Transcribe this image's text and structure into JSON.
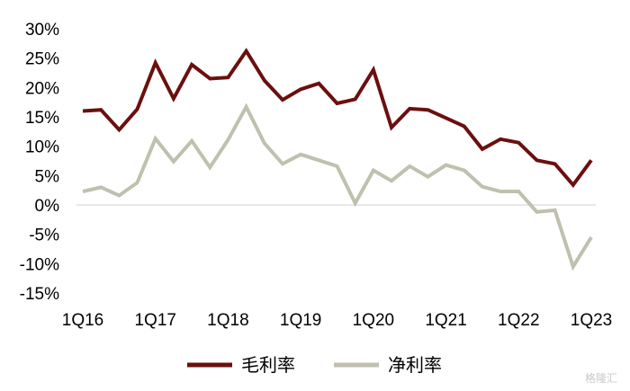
{
  "chart_data": {
    "type": "line",
    "categories": [
      "1Q16",
      "2Q16",
      "3Q16",
      "4Q16",
      "1Q17",
      "2Q17",
      "3Q17",
      "4Q17",
      "1Q18",
      "2Q18",
      "3Q18",
      "4Q18",
      "1Q19",
      "2Q19",
      "3Q19",
      "4Q19",
      "1Q20",
      "2Q20",
      "3Q20",
      "4Q20",
      "1Q21",
      "2Q21",
      "3Q21",
      "4Q21",
      "1Q22",
      "2Q22",
      "3Q22",
      "4Q22",
      "1Q23"
    ],
    "x_tick_labels": [
      "1Q16",
      "1Q17",
      "1Q18",
      "1Q19",
      "1Q20",
      "1Q21",
      "1Q22",
      "1Q23"
    ],
    "y_tick_labels": [
      "30%",
      "25%",
      "20%",
      "15%",
      "10%",
      "5%",
      "0%",
      "-5%",
      "-10%",
      "-15%"
    ],
    "ylim": [
      -15,
      30
    ],
    "grid": false,
    "legend_position": "bottom",
    "series": [
      {
        "name": "毛利率",
        "color": "#6b0f0f",
        "values": [
          16.0,
          16.2,
          12.8,
          16.3,
          24.2,
          18.1,
          23.9,
          21.5,
          21.7,
          26.2,
          21.2,
          17.9,
          19.7,
          20.7,
          17.3,
          18.0,
          23.0,
          13.2,
          16.4,
          16.2,
          14.8,
          13.4,
          9.5,
          11.2,
          10.6,
          7.6,
          7.0,
          3.4,
          7.6
        ]
      },
      {
        "name": "净利率",
        "color": "#c0c0ae",
        "values": [
          2.3,
          3.0,
          1.6,
          3.8,
          11.3,
          7.4,
          10.9,
          6.4,
          11.1,
          16.7,
          10.5,
          7.0,
          8.6,
          7.6,
          6.6,
          0.3,
          5.9,
          4.1,
          6.6,
          4.8,
          6.8,
          5.9,
          3.1,
          2.3,
          2.3,
          -1.2,
          -0.9,
          -10.5,
          -5.5
        ]
      }
    ]
  },
  "watermark": "格隆汇"
}
